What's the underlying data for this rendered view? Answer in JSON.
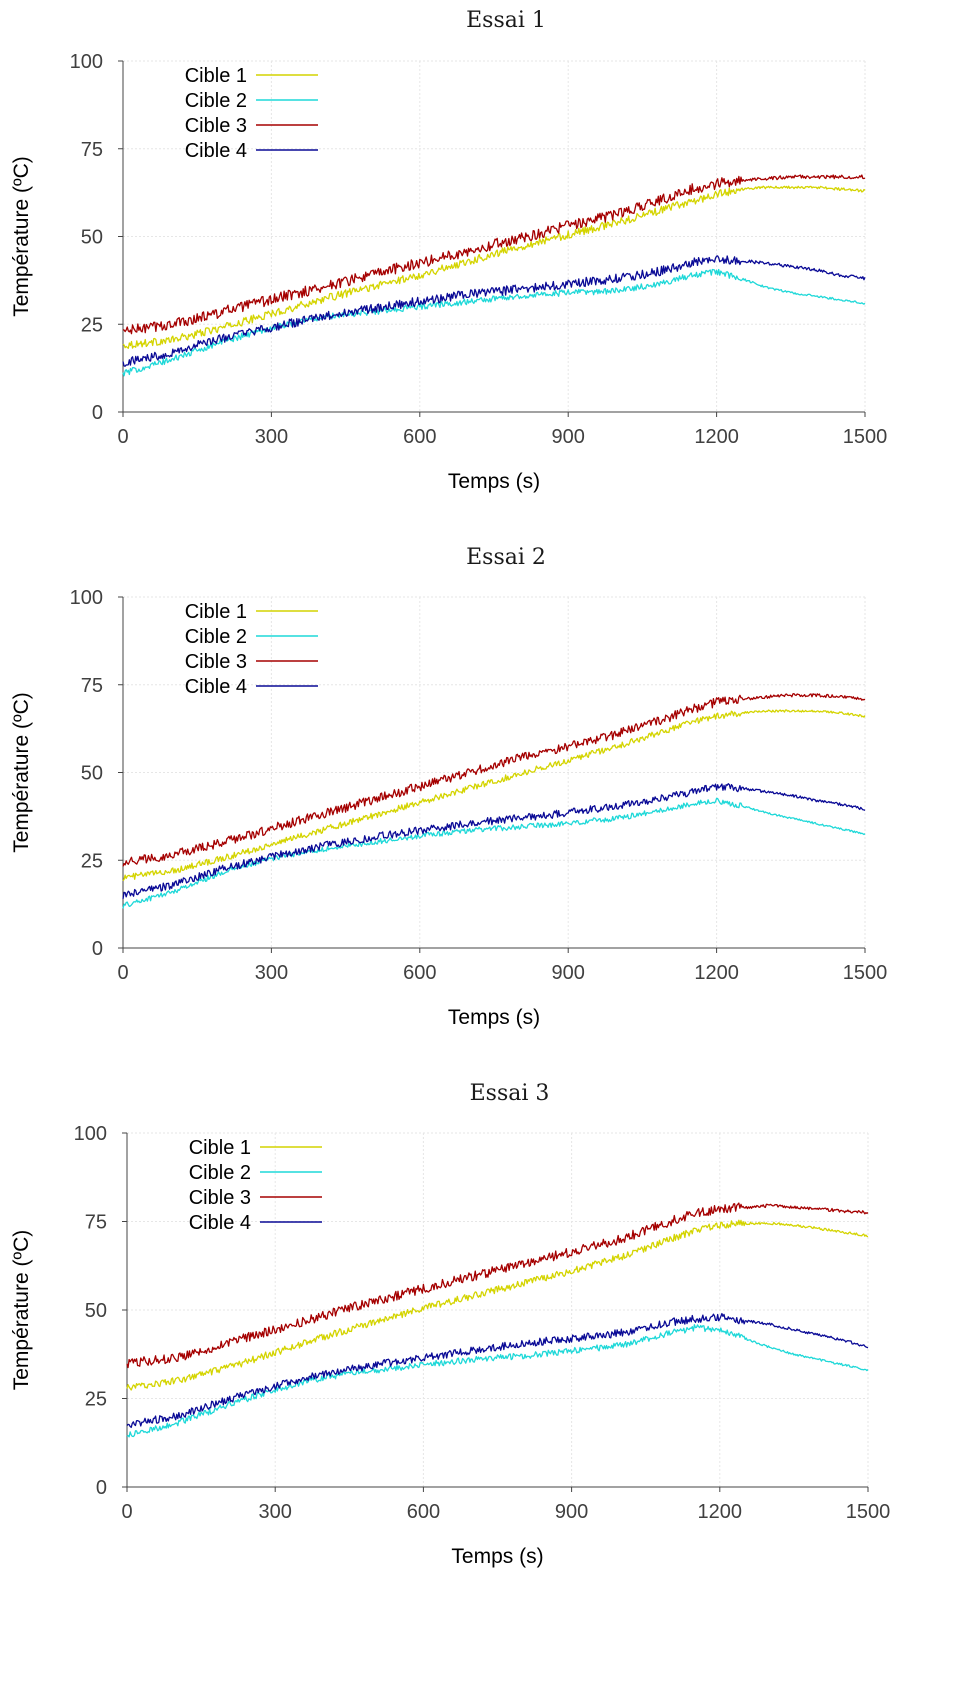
{
  "chart_data": [
    {
      "type": "line",
      "title": "Essai 1",
      "xlabel": "Temps (s)",
      "ylabel": "Température (ºC)",
      "xlim": [
        0,
        1500
      ],
      "ylim": [
        0,
        100
      ],
      "xticks": [
        "0",
        "300",
        "600",
        "900",
        "1200",
        "1500"
      ],
      "yticks": [
        "0",
        "25",
        "50",
        "75",
        "100"
      ],
      "grid": true,
      "legend_position": "top-left",
      "x": [
        0,
        100,
        200,
        300,
        400,
        500,
        600,
        700,
        800,
        900,
        1000,
        1100,
        1150,
        1200,
        1250,
        1300,
        1350,
        1400,
        1450,
        1500
      ],
      "series": [
        {
          "name": "Cible 1",
          "color": "#d4d400",
          "values": [
            19,
            20.5,
            24,
            28,
            32,
            35.5,
            39,
            43,
            47,
            50.5,
            54,
            58,
            60,
            62,
            63.5,
            64,
            64,
            64,
            63.5,
            63
          ]
        },
        {
          "name": "Cible 2",
          "color": "#1ed8d8",
          "values": [
            11,
            15,
            20,
            24,
            27,
            28.5,
            30,
            31.5,
            33,
            34,
            34.5,
            37,
            39,
            40,
            38,
            35.5,
            34,
            33,
            32,
            31
          ]
        },
        {
          "name": "Cible 3",
          "color": "#a50000",
          "values": [
            23,
            25,
            28.5,
            32,
            35.5,
            39,
            42.5,
            46,
            49.5,
            53,
            56.5,
            61,
            63.5,
            65,
            66,
            66.5,
            67,
            67,
            67,
            67
          ]
        },
        {
          "name": "Cible 4",
          "color": "#0a0a96",
          "values": [
            14,
            17,
            21,
            24,
            27,
            29.5,
            31.5,
            33.5,
            35,
            36.5,
            38,
            40.5,
            42.5,
            43.5,
            43,
            42.5,
            41.5,
            40.5,
            39,
            38
          ]
        }
      ]
    },
    {
      "type": "line",
      "title": "Essai 2",
      "xlabel": "Temps (s)",
      "ylabel": "Température (ºC)",
      "xlim": [
        0,
        1500
      ],
      "ylim": [
        0,
        100
      ],
      "xticks": [
        "0",
        "300",
        "600",
        "900",
        "1200",
        "1500"
      ],
      "yticks": [
        "0",
        "25",
        "50",
        "75",
        "100"
      ],
      "grid": true,
      "legend_position": "top-left",
      "x": [
        0,
        100,
        200,
        300,
        400,
        500,
        600,
        700,
        800,
        900,
        1000,
        1100,
        1150,
        1200,
        1250,
        1300,
        1350,
        1400,
        1450,
        1500
      ],
      "series": [
        {
          "name": "Cible 1",
          "color": "#d4d400",
          "values": [
            20,
            22,
            25.5,
            29.5,
            33.5,
            37.5,
            41.5,
            45.5,
            49.5,
            53.5,
            57.5,
            62,
            64.5,
            66,
            67,
            67.5,
            67.5,
            67.5,
            67,
            66
          ]
        },
        {
          "name": "Cible 2",
          "color": "#1ed8d8",
          "values": [
            12,
            16,
            21.5,
            25.5,
            28,
            30,
            32,
            33.5,
            34.5,
            35.5,
            37,
            39.5,
            41,
            42,
            40.5,
            38.5,
            37,
            35.5,
            34,
            32.5
          ]
        },
        {
          "name": "Cible 3",
          "color": "#a50000",
          "values": [
            24.5,
            26.5,
            30,
            34,
            38,
            42,
            46,
            50,
            54,
            57.5,
            61,
            65.5,
            68,
            70,
            71,
            71.5,
            72,
            72,
            71.5,
            71
          ]
        },
        {
          "name": "Cible 4",
          "color": "#0a0a96",
          "values": [
            15,
            18,
            22.5,
            26,
            29,
            31.5,
            33.5,
            35.5,
            37,
            38.5,
            40.5,
            43,
            44.5,
            46,
            45.5,
            44.5,
            43.5,
            42,
            41,
            39.5
          ]
        }
      ]
    },
    {
      "type": "line",
      "title": "Essai 3",
      "xlabel": "Temps (s)",
      "ylabel": "Température (ºC)",
      "xlim": [
        0,
        1500
      ],
      "ylim": [
        0,
        100
      ],
      "xticks": [
        "0",
        "300",
        "600",
        "900",
        "1200",
        "1500"
      ],
      "yticks": [
        "0",
        "25",
        "50",
        "75",
        "100"
      ],
      "grid": true,
      "legend_position": "top-left",
      "x": [
        0,
        100,
        200,
        300,
        400,
        500,
        600,
        700,
        800,
        900,
        1000,
        1100,
        1150,
        1200,
        1250,
        1300,
        1350,
        1400,
        1450,
        1500
      ],
      "series": [
        {
          "name": "Cible 1",
          "color": "#d4d400",
          "values": [
            28,
            30,
            33.5,
            38,
            42.5,
            46.5,
            50.5,
            54,
            57.5,
            61,
            65,
            70,
            72.5,
            74,
            74.5,
            74.5,
            74,
            73,
            72,
            71
          ]
        },
        {
          "name": "Cible 2",
          "color": "#1ed8d8",
          "values": [
            14.5,
            18,
            23,
            27.5,
            31,
            33,
            34.5,
            36,
            37,
            38.5,
            40,
            43.5,
            45,
            44.5,
            42,
            39.5,
            37.5,
            36,
            34.5,
            33
          ]
        },
        {
          "name": "Cible 3",
          "color": "#a50000",
          "values": [
            35,
            36.5,
            40.5,
            44.5,
            48.5,
            52.5,
            56,
            59.5,
            63,
            66.5,
            70,
            75,
            77.5,
            78.5,
            79,
            79.5,
            79,
            78.5,
            78,
            77.5
          ]
        },
        {
          "name": "Cible 4",
          "color": "#0a0a96",
          "values": [
            17.5,
            20,
            24.5,
            28.5,
            32,
            34.5,
            36.5,
            38.5,
            40.5,
            42,
            43.5,
            46.5,
            47.5,
            48,
            47,
            46,
            44.5,
            43,
            41.5,
            39.5
          ]
        }
      ]
    }
  ]
}
